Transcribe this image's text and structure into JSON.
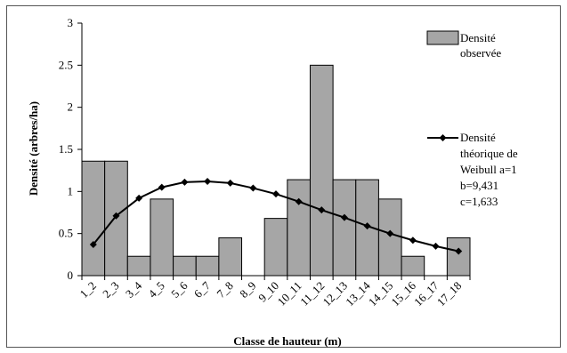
{
  "chart_data": {
    "type": "bar",
    "xlabel": "Classe de hauteur (m)",
    "ylabel": "Densité (arbres/ha)",
    "ylim": [
      0,
      3
    ],
    "yticks": [
      "0",
      "0.5",
      "1",
      "1.5",
      "2",
      "2.5",
      "3"
    ],
    "categories": [
      "1_2",
      "2_3",
      "3_4",
      "4_5",
      "5_6",
      "6_7",
      "7_8",
      "8_9",
      "9_10",
      "10_11",
      "11_12",
      "12_13",
      "13_14",
      "14_15",
      "15_16",
      "16_17",
      "17_18"
    ],
    "series": [
      {
        "kind": "bar",
        "legend_lines": [
          "Densité",
          "observée"
        ],
        "color": "#a6a6a6",
        "values": [
          1.36,
          1.36,
          0.23,
          0.91,
          0.23,
          0.23,
          0.45,
          0.0,
          0.68,
          1.14,
          2.5,
          1.14,
          1.14,
          0.91,
          0.23,
          0.0,
          0.45
        ]
      },
      {
        "kind": "line",
        "legend_lines": [
          "Densité",
          "théorique de",
          "Weibull  a=1",
          "b=9,431",
          "c=1,633"
        ],
        "color": "#000000",
        "values": [
          0.37,
          0.71,
          0.92,
          1.05,
          1.11,
          1.12,
          1.1,
          1.04,
          0.97,
          0.88,
          0.78,
          0.69,
          0.59,
          0.5,
          0.42,
          0.35,
          0.29
        ]
      }
    ],
    "grid": false,
    "legend_position": "right"
  }
}
